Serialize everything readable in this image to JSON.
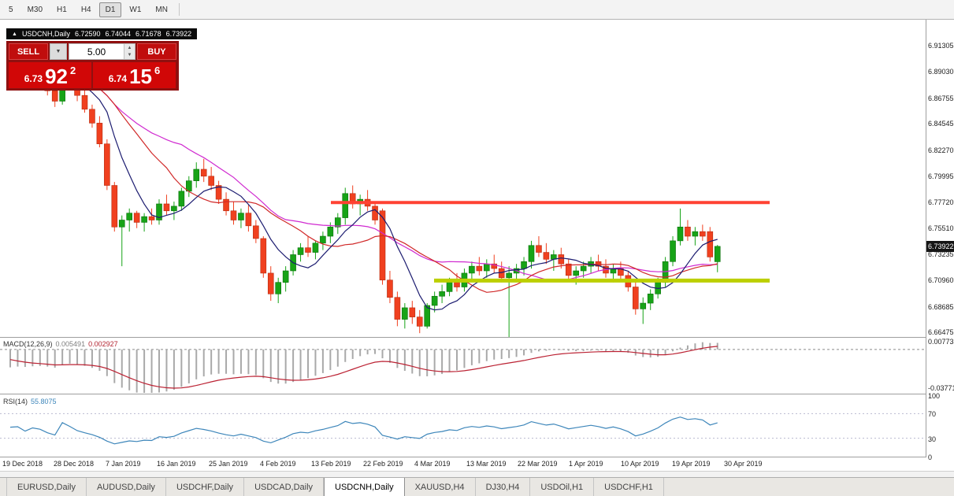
{
  "icons": {
    "collapse": "▲",
    "dropdown": "▼",
    "spin_up": "▲",
    "spin_down": "▼"
  },
  "toolbar": {
    "timeframes": [
      "5",
      "M30",
      "H1",
      "H4",
      "D1",
      "W1",
      "MN"
    ],
    "active": "D1"
  },
  "chart": {
    "title": {
      "symbol": "USDCNH,Daily",
      "open": "6.72590",
      "high": "6.74044",
      "low": "6.71678",
      "close": "6.73922"
    },
    "trade_panel": {
      "sell_label": "SELL",
      "buy_label": "BUY",
      "volume": "5.00",
      "bid": {
        "big": "6.73",
        "pips": "92",
        "sup": "2"
      },
      "ask": {
        "big": "6.74",
        "pips": "15",
        "sup": "6"
      }
    },
    "price_axis": [
      "6.91305",
      "6.89030",
      "6.86755",
      "6.84545",
      "6.82270",
      "6.79995",
      "6.77720",
      "6.75510",
      "6.73235",
      "6.70960",
      "6.68685",
      "6.66475"
    ],
    "current_price": "6.73922",
    "dates": [
      "19 Dec 2018",
      "28 Dec 2018",
      "7 Jan 2019",
      "16 Jan 2019",
      "25 Jan 2019",
      "4 Feb 2019",
      "13 Feb 2019",
      "22 Feb 2019",
      "4 Mar 2019",
      "13 Mar 2019",
      "22 Mar 2019",
      "1 Apr 2019",
      "10 Apr 2019",
      "19 Apr 2019",
      "30 Apr 2019"
    ],
    "lines": {
      "resistance": {
        "price": 6.7772,
        "color": "#ff4233"
      },
      "support": {
        "price": 6.7096,
        "color": "#bccf00"
      }
    }
  },
  "macd": {
    "label": "MACD(12,26,9)",
    "value_main": "0.005491",
    "value_signal": "0.002927",
    "axis_max": "0.007738",
    "axis_min": "-0.037714"
  },
  "rsi": {
    "label": "RSI(14)",
    "value": "55.8075",
    "axis": [
      "100",
      "70",
      "30",
      "0"
    ]
  },
  "tabs": {
    "items": [
      "EURUSD,Daily",
      "AUDUSD,Daily",
      "USDCHF,Daily",
      "USDCAD,Daily",
      "USDCNH,Daily",
      "XAUUSD,H4",
      "DJ30,H4",
      "USDOil,H1",
      "USDCHF,H1"
    ],
    "active": "USDCNH,Daily"
  },
  "chart_data": {
    "type": "candlestick",
    "symbol": "USDCNH",
    "timeframe": "Daily",
    "price_range": [
      6.6607,
      6.9322
    ],
    "colors": {
      "up": "#17a317",
      "up_border": "#0b710b",
      "down": "#f0401f",
      "down_border": "#b52d12"
    },
    "ma_colors": {
      "fast": "#1c1c70",
      "medium": "#d02828",
      "slow": "#d02ad0"
    },
    "macd_colors": {
      "histogram": "#a9a9a9",
      "signal": "#bb2233"
    },
    "rsi_color": "#3d86ba",
    "ohlc": [
      [
        6.885,
        6.9,
        6.88,
        6.897
      ],
      [
        6.897,
        6.906,
        6.89,
        6.895
      ],
      [
        6.895,
        6.9,
        6.878,
        6.882
      ],
      [
        6.882,
        6.893,
        6.876,
        6.89
      ],
      [
        6.89,
        6.898,
        6.883,
        6.886
      ],
      [
        6.886,
        6.891,
        6.87,
        6.874
      ],
      [
        6.874,
        6.88,
        6.86,
        6.865
      ],
      [
        6.865,
        6.912,
        6.862,
        6.905
      ],
      [
        6.905,
        6.91,
        6.886,
        6.89
      ],
      [
        6.89,
        6.893,
        6.865,
        6.87
      ],
      [
        6.87,
        6.877,
        6.855,
        6.858
      ],
      [
        6.858,
        6.862,
        6.842,
        6.846
      ],
      [
        6.846,
        6.852,
        6.825,
        6.828
      ],
      [
        6.828,
        6.832,
        6.788,
        6.792
      ],
      [
        6.792,
        6.795,
        6.752,
        6.756
      ],
      [
        6.756,
        6.766,
        6.722,
        6.762
      ],
      [
        6.762,
        6.772,
        6.752,
        6.768
      ],
      [
        6.768,
        6.77,
        6.755,
        6.76
      ],
      [
        6.76,
        6.768,
        6.752,
        6.765
      ],
      [
        6.765,
        6.772,
        6.758,
        6.762
      ],
      [
        6.762,
        6.78,
        6.758,
        6.776
      ],
      [
        6.776,
        6.784,
        6.766,
        6.77
      ],
      [
        6.77,
        6.778,
        6.762,
        6.774
      ],
      [
        6.774,
        6.79,
        6.77,
        6.787
      ],
      [
        6.787,
        6.8,
        6.782,
        6.796
      ],
      [
        6.796,
        6.812,
        6.79,
        6.806
      ],
      [
        6.806,
        6.815,
        6.795,
        6.8
      ],
      [
        6.8,
        6.808,
        6.788,
        6.792
      ],
      [
        6.792,
        6.796,
        6.776,
        6.78
      ],
      [
        6.78,
        6.786,
        6.766,
        6.77
      ],
      [
        6.77,
        6.778,
        6.758,
        6.762
      ],
      [
        6.762,
        6.772,
        6.755,
        6.768
      ],
      [
        6.768,
        6.775,
        6.752,
        6.757
      ],
      [
        6.757,
        6.762,
        6.742,
        6.746
      ],
      [
        6.746,
        6.748,
        6.712,
        6.716
      ],
      [
        6.716,
        6.722,
        6.692,
        6.698
      ],
      [
        6.698,
        6.712,
        6.69,
        6.708
      ],
      [
        6.708,
        6.722,
        6.7,
        6.718
      ],
      [
        6.718,
        6.736,
        6.714,
        6.732
      ],
      [
        6.732,
        6.742,
        6.726,
        6.738
      ],
      [
        6.738,
        6.748,
        6.73,
        6.734
      ],
      [
        6.734,
        6.744,
        6.728,
        6.742
      ],
      [
        6.742,
        6.752,
        6.736,
        6.748
      ],
      [
        6.748,
        6.76,
        6.742,
        6.756
      ],
      [
        6.756,
        6.768,
        6.75,
        6.764
      ],
      [
        6.764,
        6.79,
        6.758,
        6.785
      ],
      [
        6.785,
        6.792,
        6.772,
        6.776
      ],
      [
        6.776,
        6.784,
        6.766,
        6.78
      ],
      [
        6.78,
        6.788,
        6.77,
        6.774
      ],
      [
        6.774,
        6.778,
        6.758,
        6.762
      ],
      [
        6.77,
        6.772,
        6.706,
        6.71
      ],
      [
        6.71,
        6.718,
        6.69,
        6.695
      ],
      [
        6.695,
        6.7,
        6.67,
        6.676
      ],
      [
        6.676,
        6.69,
        6.668,
        6.686
      ],
      [
        6.686,
        6.692,
        6.672,
        6.678
      ],
      [
        6.678,
        6.684,
        6.664,
        6.67
      ],
      [
        6.67,
        6.69,
        6.668,
        6.688
      ],
      [
        6.688,
        6.7,
        6.682,
        6.696
      ],
      [
        6.696,
        6.706,
        6.69,
        6.7
      ],
      [
        6.7,
        6.712,
        6.696,
        6.708
      ],
      [
        6.708,
        6.716,
        6.7,
        6.704
      ],
      [
        6.704,
        6.72,
        6.7,
        6.716
      ],
      [
        6.716,
        6.726,
        6.71,
        6.722
      ],
      [
        6.722,
        6.73,
        6.714,
        6.718
      ],
      [
        6.718,
        6.728,
        6.712,
        6.724
      ],
      [
        6.724,
        6.732,
        6.716,
        6.72
      ],
      [
        6.72,
        6.726,
        6.708,
        6.712
      ],
      [
        6.712,
        6.722,
        6.655,
        6.716
      ],
      [
        6.716,
        6.724,
        6.708,
        6.72
      ],
      [
        6.72,
        6.73,
        6.714,
        6.726
      ],
      [
        6.726,
        6.744,
        6.72,
        6.74
      ],
      [
        6.74,
        6.748,
        6.73,
        6.734
      ],
      [
        6.734,
        6.742,
        6.724,
        6.728
      ],
      [
        6.728,
        6.736,
        6.718,
        6.732
      ],
      [
        6.732,
        6.738,
        6.72,
        6.724
      ],
      [
        6.724,
        6.728,
        6.71,
        6.714
      ],
      [
        6.714,
        6.722,
        6.706,
        6.718
      ],
      [
        6.718,
        6.726,
        6.712,
        6.722
      ],
      [
        6.722,
        6.73,
        6.716,
        6.726
      ],
      [
        6.726,
        6.732,
        6.718,
        6.722
      ],
      [
        6.722,
        6.728,
        6.712,
        6.716
      ],
      [
        6.716,
        6.724,
        6.708,
        6.72
      ],
      [
        6.72,
        6.726,
        6.71,
        6.714
      ],
      [
        6.714,
        6.718,
        6.7,
        6.704
      ],
      [
        6.704,
        6.71,
        6.68,
        6.685
      ],
      [
        6.685,
        6.695,
        6.672,
        6.69
      ],
      [
        6.69,
        6.702,
        6.684,
        6.698
      ],
      [
        6.698,
        6.712,
        6.694,
        6.708
      ],
      [
        6.708,
        6.73,
        6.704,
        6.726
      ],
      [
        6.726,
        6.748,
        6.722,
        6.744
      ],
      [
        6.744,
        6.772,
        6.74,
        6.756
      ],
      [
        6.756,
        6.762,
        6.744,
        6.748
      ],
      [
        6.748,
        6.756,
        6.74,
        6.752
      ],
      [
        6.752,
        6.758,
        6.744,
        6.748
      ],
      [
        6.752,
        6.756,
        6.726,
        6.73
      ],
      [
        6.7259,
        6.74044,
        6.71678,
        6.73922
      ]
    ]
  }
}
